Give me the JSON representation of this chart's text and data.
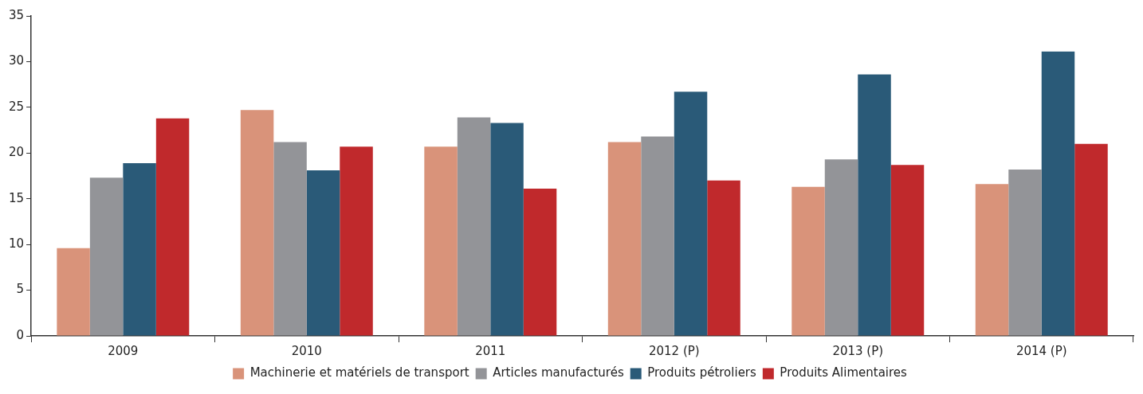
{
  "chart_data": {
    "type": "bar",
    "categories": [
      "2009",
      "2010",
      "2011",
      "2012 (P)",
      "2013 (P)",
      "2014 (P)"
    ],
    "series": [
      {
        "name": "Machinerie et matériels de transport",
        "color": "#d9937a",
        "values": [
          9.6,
          24.7,
          20.7,
          21.2,
          16.3,
          16.6
        ]
      },
      {
        "name": "Articles manufacturés",
        "color": "#939498",
        "values": [
          17.3,
          21.2,
          23.9,
          21.8,
          19.3,
          18.2
        ]
      },
      {
        "name": "Produits pétroliers",
        "color": "#2a5a78",
        "values": [
          18.9,
          18.1,
          23.3,
          26.7,
          28.6,
          31.1
        ]
      },
      {
        "name": "Produits Alimentaires",
        "color": "#c0292c",
        "values": [
          23.8,
          20.7,
          16.1,
          17.0,
          18.7,
          21.0
        ]
      }
    ],
    "ylim": [
      0,
      35
    ],
    "yticks": [
      0,
      5,
      10,
      15,
      20,
      25,
      30,
      35
    ],
    "grid": false,
    "legend": "bottom"
  }
}
